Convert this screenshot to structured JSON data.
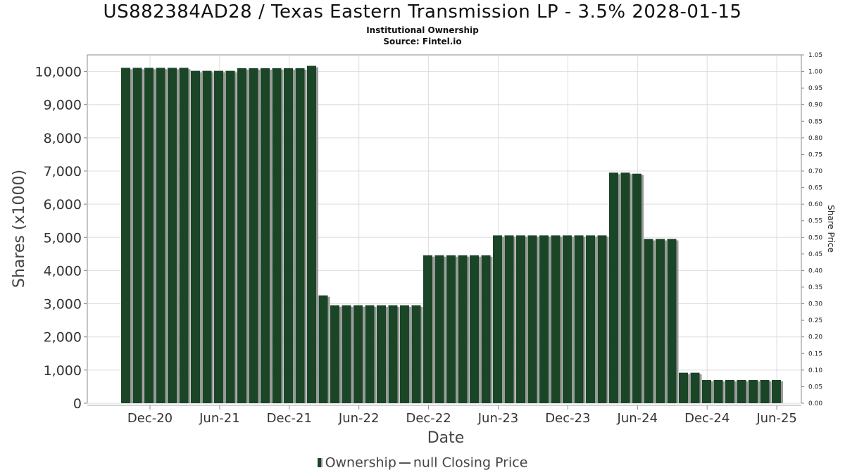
{
  "header": {
    "title": "US882384AD28 / Texas Eastern Transmission LP - 3.5% 2028-01-15",
    "subtitle": "Institutional Ownership",
    "source": "Source: Fintel.io"
  },
  "legend": {
    "ownership": "Ownership",
    "price": "null Closing Price"
  },
  "colors": {
    "bar": "#1b4527",
    "bar_shadow": "#999999",
    "grid": "#dddddd"
  },
  "chart_data": {
    "type": "bar",
    "xlabel": "Date",
    "ylabel": "Shares (x1000)",
    "y2label": "Share Price",
    "ylim": [
      0,
      10500
    ],
    "y2lim": [
      0,
      1.05
    ],
    "grid": true,
    "legend_position": "bottom",
    "yticks": [
      "0",
      "1,000",
      "2,000",
      "3,000",
      "4,000",
      "5,000",
      "6,000",
      "7,000",
      "8,000",
      "9,000",
      "10,000"
    ],
    "y2ticks": [
      "0.00",
      "0.05",
      "0.10",
      "0.15",
      "0.20",
      "0.25",
      "0.30",
      "0.35",
      "0.40",
      "0.45",
      "0.50",
      "0.55",
      "0.60",
      "0.65",
      "0.70",
      "0.75",
      "0.80",
      "0.85",
      "0.90",
      "0.95",
      "1.00",
      "1.05"
    ],
    "xticks": [
      "Dec-20",
      "Jun-21",
      "Dec-21",
      "Jun-22",
      "Dec-22",
      "Jun-23",
      "Dec-23",
      "Jun-24",
      "Dec-24",
      "Jun-25"
    ],
    "series": [
      {
        "name": "Ownership",
        "values": [
          10110,
          10110,
          10110,
          10110,
          10110,
          10110,
          10020,
          10020,
          10020,
          10020,
          10100,
          10100,
          10100,
          10100,
          10100,
          10100,
          10170,
          3250,
          2950,
          2950,
          2950,
          2950,
          2950,
          2950,
          2950,
          2950,
          4460,
          4460,
          4460,
          4460,
          4460,
          4460,
          5060,
          5060,
          5060,
          5060,
          5060,
          5060,
          5060,
          5060,
          5060,
          5060,
          6950,
          6950,
          6920,
          4950,
          4950,
          4950,
          920,
          920,
          700,
          700,
          700,
          700,
          700,
          700,
          700
        ]
      }
    ]
  }
}
